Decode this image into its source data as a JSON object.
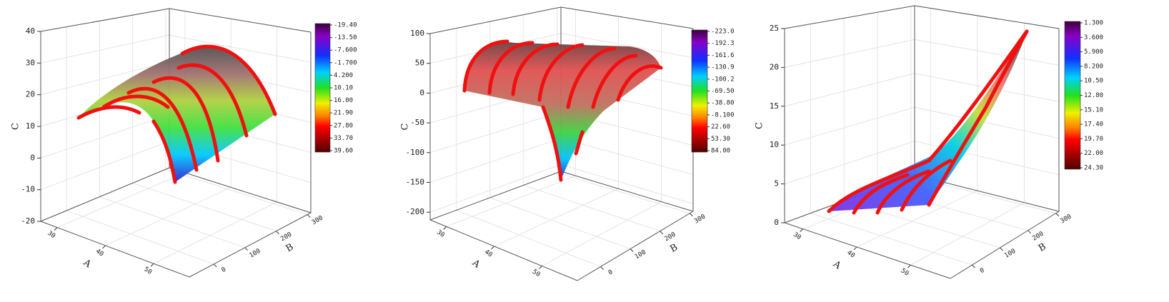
{
  "chart_data": [
    {
      "type": "surface3d",
      "zlabel": "C",
      "xlabel": "A",
      "ylabel": "B",
      "xlim": [
        26.6,
        57.4
      ],
      "xticks": [
        30,
        40,
        50
      ],
      "ylim": [
        -78,
        311
      ],
      "yticks": [
        0,
        100,
        200,
        300
      ],
      "zlim": [
        -20,
        40
      ],
      "zticks": [
        -20,
        -10,
        0,
        10,
        20,
        30,
        40
      ],
      "colorbar_ticks": [
        {
          "value": -19.4,
          "label": "-19.40"
        },
        {
          "value": -13.5,
          "label": "-13.50"
        },
        {
          "value": -7.6,
          "label": "-7.600"
        },
        {
          "value": -1.7,
          "label": "-1.700"
        },
        {
          "value": 4.2,
          "label": "4.200"
        },
        {
          "value": 10.1,
          "label": "10.10"
        },
        {
          "value": 16,
          "label": "16.00"
        },
        {
          "value": 21.9,
          "label": "21.90"
        },
        {
          "value": 27.8,
          "label": "27.80"
        },
        {
          "value": 33.7,
          "label": "33.70"
        },
        {
          "value": 39.6,
          "label": "39.60"
        }
      ]
    },
    {
      "type": "surface3d",
      "zlabel": "C",
      "xlabel": "A",
      "ylabel": "B",
      "xlim": [
        26.6,
        57.4
      ],
      "xticks": [
        30,
        40,
        50
      ],
      "ylim": [
        -78,
        311
      ],
      "yticks": [
        0,
        100,
        200,
        300
      ],
      "zlim": [
        -213,
        100
      ],
      "zticks": [
        -200,
        -150,
        -100,
        -50,
        0,
        50,
        100
      ],
      "colorbar_ticks": [
        {
          "value": -223,
          "label": "-223.0"
        },
        {
          "value": -192.3,
          "label": "-192.3"
        },
        {
          "value": -161.6,
          "label": "-161.6"
        },
        {
          "value": -130.9,
          "label": "-130.9"
        },
        {
          "value": -100.2,
          "label": "-100.2"
        },
        {
          "value": -69.5,
          "label": "-69.50"
        },
        {
          "value": -38.8,
          "label": "-38.80"
        },
        {
          "value": -8.1,
          "label": "-8.100"
        },
        {
          "value": 22.6,
          "label": "22.60"
        },
        {
          "value": 53.3,
          "label": "53.30"
        },
        {
          "value": 84,
          "label": "84.00"
        }
      ]
    },
    {
      "type": "surface3d",
      "zlabel": "C",
      "xlabel": "A",
      "ylabel": "B",
      "xlim": [
        26.6,
        57.4
      ],
      "xticks": [
        30,
        40,
        50
      ],
      "ylim": [
        -78,
        311
      ],
      "yticks": [
        0,
        100,
        200,
        300
      ],
      "zlim": [
        0,
        25
      ],
      "zticks": [
        0,
        5,
        10,
        15,
        20,
        25
      ],
      "colorbar_ticks": [
        {
          "value": 1.3,
          "label": "1.300"
        },
        {
          "value": 3.6,
          "label": "3.600"
        },
        {
          "value": 5.9,
          "label": "5.900"
        },
        {
          "value": 8.2,
          "label": "8.200"
        },
        {
          "value": 10.5,
          "label": "10.50"
        },
        {
          "value": 12.8,
          "label": "12.80"
        },
        {
          "value": 15.1,
          "label": "15.10"
        },
        {
          "value": 17.4,
          "label": "17.40"
        },
        {
          "value": 19.7,
          "label": "19.70"
        },
        {
          "value": 22,
          "label": "22.00"
        },
        {
          "value": 24.3,
          "label": "24.30"
        }
      ]
    }
  ]
}
